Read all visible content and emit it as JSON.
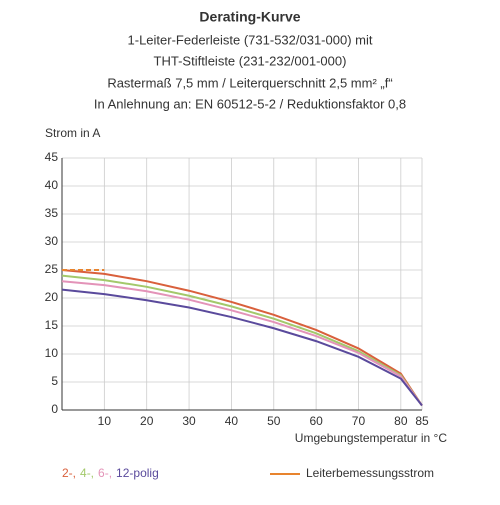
{
  "chart_data": {
    "type": "line",
    "title": "Derating-Kurve",
    "subtitle": [
      "1-Leiter-Federleiste (731-532/031-000) mit",
      "THT-Stiftleiste (231-232/001-000)",
      "Rastermaß 7,5 mm / Leiterquerschnitt 2,5 mm² „f“",
      "In Anlehnung an: EN 60512-5-2 / Reduktionsfaktor 0,8"
    ],
    "y_label": "Strom in A",
    "x_label": "Umgebungstemperatur in °C",
    "x": [
      0,
      10,
      20,
      30,
      40,
      50,
      60,
      70,
      80,
      85
    ],
    "series": [
      {
        "name": "2-,",
        "color": "#d9603c",
        "values": [
          25,
          24.3,
          23,
          21.3,
          19.3,
          17,
          14.3,
          11,
          6.5,
          0.8
        ]
      },
      {
        "name": "4-,",
        "color": "#a3c96b",
        "values": [
          24,
          23.2,
          22,
          20.4,
          18.5,
          16.3,
          13.7,
          10.5,
          6.2,
          0.8
        ]
      },
      {
        "name": "6-,",
        "color": "#e393b8",
        "values": [
          23,
          22.3,
          21.2,
          19.7,
          17.8,
          15.7,
          13.2,
          10.2,
          6,
          0.8
        ]
      },
      {
        "name": "12-polig",
        "color": "#5a4a9c",
        "values": [
          21.5,
          20.7,
          19.6,
          18.3,
          16.6,
          14.6,
          12.3,
          9.5,
          5.6,
          0.8
        ]
      },
      {
        "name": "Leiterbemessungsstrom",
        "color": "#e8842e",
        "dashed": true,
        "values": [
          25,
          25,
          null,
          null,
          null,
          null,
          null,
          null,
          null,
          null
        ]
      }
    ],
    "xlim": [
      0,
      85
    ],
    "xticks": [
      10,
      20,
      30,
      40,
      50,
      60,
      70,
      80,
      85
    ],
    "ylim": [
      0,
      45
    ],
    "yticks": [
      0,
      5,
      10,
      15,
      20,
      25,
      30,
      35,
      40,
      45
    ],
    "grid": true
  }
}
